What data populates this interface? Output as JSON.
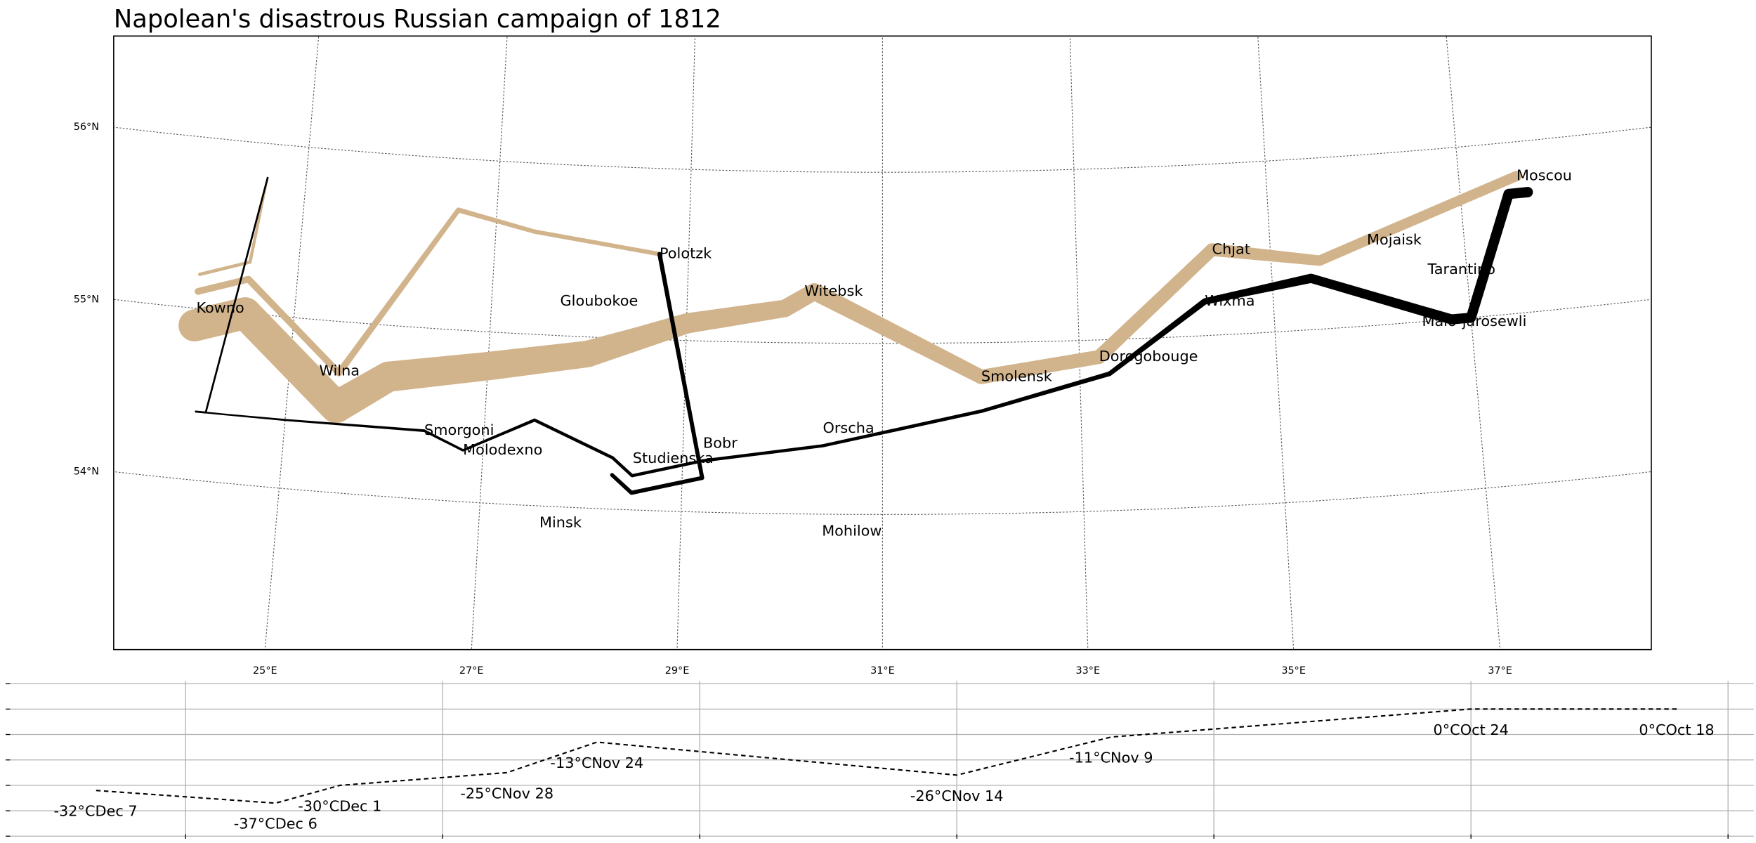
{
  "chart_data": [
    {
      "type": "map",
      "title": "Napolean's disastrous Russian campaign of 1812",
      "lat_ticks": [
        {
          "value": 54,
          "label": "54°N"
        },
        {
          "value": 55,
          "label": "55°N"
        },
        {
          "value": 56,
          "label": "56°N"
        }
      ],
      "lon_ticks": [
        {
          "value": 25,
          "label": "25°E"
        },
        {
          "value": 27,
          "label": "27°E"
        },
        {
          "value": 29,
          "label": "29°E"
        },
        {
          "value": 31,
          "label": "31°E"
        },
        {
          "value": 33,
          "label": "33°E"
        },
        {
          "value": 35,
          "label": "35°E"
        },
        {
          "value": 37,
          "label": "37°E"
        }
      ],
      "cities": [
        {
          "name": "Kowno",
          "lon": 24.0,
          "lat": 55.0
        },
        {
          "name": "Wilna",
          "lon": 25.3,
          "lat": 54.7
        },
        {
          "name": "Smorgoni",
          "lon": 26.4,
          "lat": 54.4
        },
        {
          "name": "Molodexno",
          "lon": 26.8,
          "lat": 54.3
        },
        {
          "name": "Gloubokoe",
          "lon": 27.7,
          "lat": 55.2
        },
        {
          "name": "Minsk",
          "lon": 27.6,
          "lat": 53.9
        },
        {
          "name": "Studienska",
          "lon": 28.5,
          "lat": 54.3
        },
        {
          "name": "Polotzk",
          "lon": 28.7,
          "lat": 55.5
        },
        {
          "name": "Bobr",
          "lon": 29.2,
          "lat": 54.4
        },
        {
          "name": "Witebsk",
          "lon": 30.2,
          "lat": 55.3
        },
        {
          "name": "Orscha",
          "lon": 30.4,
          "lat": 54.5
        },
        {
          "name": "Mohilow",
          "lon": 30.4,
          "lat": 53.9
        },
        {
          "name": "Smolensk",
          "lon": 32.0,
          "lat": 54.8
        },
        {
          "name": "Dorogobouge",
          "lon": 33.2,
          "lat": 54.9
        },
        {
          "name": "Wixma",
          "lon": 34.3,
          "lat": 55.2
        },
        {
          "name": "Chjat",
          "lon": 34.4,
          "lat": 55.5
        },
        {
          "name": "Mojaisk",
          "lon": 36.0,
          "lat": 55.5
        },
        {
          "name": "Moscou",
          "lon": 37.6,
          "lat": 55.8
        },
        {
          "name": "Tarantino",
          "lon": 36.6,
          "lat": 55.3
        },
        {
          "name": "Malo-jarosewli",
          "lon": 36.5,
          "lat": 55.0
        }
      ],
      "troops": [
        {
          "color": "#d2b48c",
          "lon": [
            24.0,
            24.5,
            25.5,
            26.0,
            27.0,
            28.0,
            28.5,
            29.0,
            30.0,
            30.3,
            32.0,
            33.2,
            34.4,
            35.5,
            36.0,
            37.6
          ],
          "lat": [
            54.9,
            55.0,
            54.5,
            54.7,
            54.8,
            54.9,
            55.0,
            55.1,
            55.2,
            55.3,
            54.8,
            54.9,
            55.5,
            55.4,
            55.5,
            55.8
          ],
          "survivors": [
            340000,
            340000,
            340000,
            320000,
            300000,
            280000,
            240000,
            210000,
            180000,
            175000,
            145000,
            140000,
            127100,
            100000,
            100000,
            100000
          ]
        },
        {
          "color": "#000000",
          "lon": [
            37.7,
            37.5,
            37.0,
            36.8,
            35.4,
            34.3,
            33.3,
            32.0,
            30.4,
            29.2,
            28.5,
            28.3,
            27.5,
            26.8,
            26.4,
            25.0,
            24.4,
            24.2,
            24.1
          ],
          "lat": [
            55.7,
            55.7,
            55.0,
            55.0,
            55.3,
            55.2,
            54.8,
            54.6,
            54.4,
            54.3,
            54.2,
            54.3,
            54.5,
            54.3,
            54.4,
            54.4,
            54.4,
            54.4,
            54.4
          ],
          "survivors": [
            100000,
            98000,
            97000,
            96000,
            87000,
            55000,
            37000,
            24000,
            20000,
            20000,
            20000,
            20000,
            20000,
            12000,
            14000,
            8000,
            4000,
            4000,
            4000
          ]
        },
        {
          "color": "#d2b48c",
          "lon": [
            24.0,
            24.5,
            25.5,
            26.6,
            27.4,
            28.7
          ],
          "lat": [
            55.1,
            55.2,
            54.7,
            55.7,
            55.6,
            55.5
          ],
          "survivors": [
            60000,
            60000,
            60000,
            40000,
            33000,
            33000
          ]
        },
        {
          "color": "#000000",
          "lon": [
            28.7,
            29.2,
            28.5,
            28.3
          ],
          "lat": [
            55.5,
            54.2,
            54.1,
            54.2
          ],
          "survivors": [
            33000,
            30000,
            30000,
            28000
          ]
        },
        {
          "color": "#d2b48c",
          "lon": [
            24.0,
            24.5,
            24.6
          ],
          "lat": [
            55.2,
            55.3,
            55.8
          ],
          "survivors": [
            22000,
            22000,
            6000
          ]
        },
        {
          "color": "#000000",
          "lon": [
            24.6,
            24.2,
            24.1
          ],
          "lat": [
            55.8,
            54.4,
            54.4
          ],
          "survivors": [
            6000,
            6000,
            6000
          ]
        }
      ]
    },
    {
      "type": "line",
      "x": [
        37.6,
        36.0,
        33.2,
        32.0,
        29.2,
        28.5,
        27.2,
        26.7,
        25.3
      ],
      "values": [
        0,
        0,
        -11,
        -26,
        -13,
        -25,
        -30,
        -37,
        -32
      ],
      "value_labels": [
        "0°COct 18",
        "0°COct 24",
        "-11°CNov 9",
        "-26°CNov 14",
        "-13°CNov 24",
        "-25°CNov 28",
        "-30°CDec 1",
        "-37°CDec 6",
        "-32°CDec 7"
      ],
      "color": "#000000",
      "linestyle": "dashed",
      "xlim": [
        24.6,
        38.2
      ],
      "xticks": [
        26,
        28,
        30,
        32,
        34,
        36,
        38
      ],
      "ylim": [
        -51,
        11
      ],
      "yticks": [
        -50,
        -40,
        -30,
        -20,
        -10,
        0,
        10
      ],
      "grid": true
    }
  ]
}
